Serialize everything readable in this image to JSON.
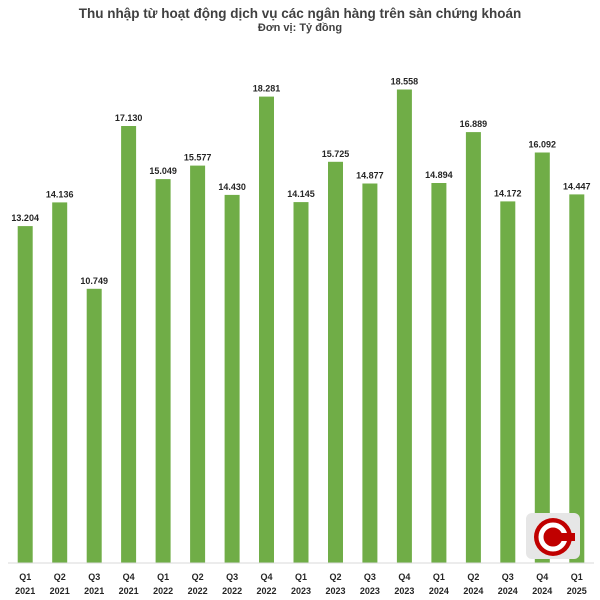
{
  "chart_data": {
    "type": "bar",
    "title": "Thu nhập từ hoạt động dịch vụ các ngân hàng trên sàn chứng khoán",
    "subtitle": "Đơn vị: Tỷ đồng",
    "xlabel": "",
    "ylabel": "",
    "grid": false,
    "categories": [
      [
        "Q1",
        "2021"
      ],
      [
        "Q2",
        "2021"
      ],
      [
        "Q3",
        "2021"
      ],
      [
        "Q4",
        "2021"
      ],
      [
        "Q1",
        "2022"
      ],
      [
        "Q2",
        "2022"
      ],
      [
        "Q3",
        "2022"
      ],
      [
        "Q4",
        "2022"
      ],
      [
        "Q1",
        "2023"
      ],
      [
        "Q2",
        "2023"
      ],
      [
        "Q3",
        "2023"
      ],
      [
        "Q4",
        "2023"
      ],
      [
        "Q1",
        "2024"
      ],
      [
        "Q2",
        "2024"
      ],
      [
        "Q3",
        "2024"
      ],
      [
        "Q4",
        "2024"
      ],
      [
        "Q1",
        "2025"
      ]
    ],
    "values": [
      13204,
      14136,
      10749,
      17130,
      15049,
      15577,
      14430,
      18281,
      14145,
      15725,
      14877,
      18558,
      14894,
      16889,
      14172,
      16092,
      14447
    ],
    "value_labels": [
      "13.204",
      "14.136",
      "10.749",
      "17.130",
      "15.049",
      "15.577",
      "14.430",
      "18.281",
      "14.145",
      "15.725",
      "14.877",
      "18.558",
      "14.894",
      "16.889",
      "14.172",
      "16.092",
      "14.447"
    ],
    "ylim": [
      0,
      20500
    ],
    "bar_color": "#70AD47"
  },
  "logo": {
    "name": "cafef-logo-icon",
    "colors": {
      "outer": "#C00000",
      "inner": "#FFFFFF",
      "background": "#E6E6E6"
    }
  }
}
